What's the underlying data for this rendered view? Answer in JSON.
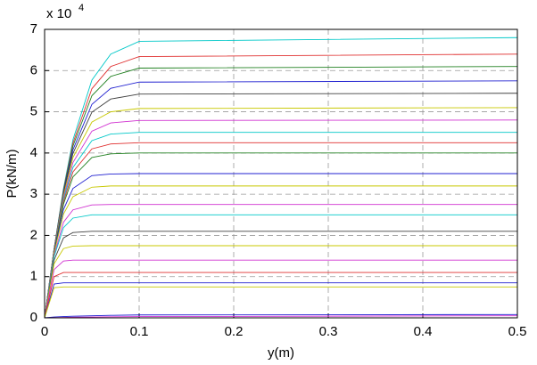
{
  "chart_data": {
    "type": "line",
    "xlabel": "y(m)",
    "ylabel": "P(kN/m)",
    "y_multiplier": "x 10",
    "y_multiplier_exponent": "4",
    "x": [
      0,
      0.01,
      0.02,
      0.03,
      0.05,
      0.07,
      0.1,
      0.5
    ],
    "xlim": [
      0,
      0.5
    ],
    "xticks": [
      0,
      0.1,
      0.2,
      0.3,
      0.4,
      0.5
    ],
    "ylim": [
      0,
      7
    ],
    "yticks": [
      0,
      1,
      2,
      3,
      4,
      5,
      6,
      7
    ],
    "grid": true,
    "series": [
      {
        "color": "#00c8c8",
        "values": [
          0,
          1.67,
          3.14,
          4.32,
          5.77,
          6.4,
          6.71,
          6.8
        ]
      },
      {
        "color": "#e03030",
        "values": [
          0,
          1.66,
          3.11,
          4.24,
          5.56,
          6.1,
          6.34,
          6.4
        ]
      },
      {
        "color": "#208020",
        "values": [
          0,
          1.66,
          3.09,
          4.17,
          5.39,
          5.86,
          6.06,
          6.1
        ]
      },
      {
        "color": "#2020d0",
        "values": [
          0,
          1.66,
          3.05,
          4.08,
          5.18,
          5.57,
          5.72,
          5.75
        ]
      },
      {
        "color": "#404040",
        "values": [
          0,
          1.65,
          3.02,
          3.99,
          4.99,
          5.31,
          5.43,
          5.45
        ]
      },
      {
        "color": "#c8c800",
        "values": [
          0,
          1.64,
          2.97,
          3.89,
          4.75,
          5.0,
          5.08,
          5.1
        ]
      },
      {
        "color": "#d030d0",
        "values": [
          0,
          1.63,
          2.92,
          3.77,
          4.53,
          4.73,
          4.79,
          4.8
        ]
      },
      {
        "color": "#00c8c8",
        "values": [
          0,
          1.62,
          2.88,
          3.65,
          4.3,
          4.46,
          4.5,
          4.5
        ]
      },
      {
        "color": "#e03030",
        "values": [
          0,
          1.62,
          2.82,
          3.54,
          4.1,
          4.22,
          4.25,
          4.25
        ]
      },
      {
        "color": "#208020",
        "values": [
          0,
          1.6,
          2.76,
          3.42,
          3.89,
          3.98,
          4.0,
          4.0
        ]
      },
      {
        "color": "#2020d0",
        "values": [
          0,
          1.58,
          2.63,
          3.14,
          3.45,
          3.49,
          3.5,
          3.5
        ]
      },
      {
        "color": "#c8c800",
        "values": [
          0,
          1.56,
          2.52,
          2.94,
          3.17,
          3.2,
          3.2,
          3.2
        ]
      },
      {
        "color": "#d030d0",
        "values": [
          0,
          1.51,
          2.32,
          2.62,
          2.74,
          2.75,
          2.75,
          2.75
        ]
      },
      {
        "color": "#00c8c8",
        "values": [
          0,
          1.48,
          2.19,
          2.42,
          2.5,
          2.5,
          2.5,
          2.5
        ]
      },
      {
        "color": "#404040",
        "values": [
          0,
          1.4,
          1.94,
          2.07,
          2.1,
          2.1,
          2.1,
          2.1
        ]
      },
      {
        "color": "#c8c800",
        "values": [
          0,
          1.31,
          1.68,
          1.74,
          1.75,
          1.75,
          1.75,
          1.75
        ]
      },
      {
        "color": "#d030d0",
        "values": [
          0,
          1.17,
          1.38,
          1.4,
          1.4,
          1.4,
          1.4,
          1.4
        ]
      },
      {
        "color": "#e03030",
        "values": [
          0,
          1.0,
          1.1,
          1.1,
          1.1,
          1.1,
          1.1,
          1.1
        ]
      },
      {
        "color": "#2020d0",
        "values": [
          0,
          0.82,
          0.85,
          0.85,
          0.85,
          0.85,
          0.85,
          0.85
        ]
      },
      {
        "color": "#c8c800",
        "values": [
          0,
          0.73,
          0.75,
          0.75,
          0.75,
          0.75,
          0.75,
          0.75
        ]
      },
      {
        "color": "#2020d0",
        "values": [
          0,
          0.02,
          0.03,
          0.04,
          0.05,
          0.06,
          0.07,
          0.08
        ]
      },
      {
        "color": "#d030d0",
        "values": [
          0,
          0.005,
          0.01,
          0.015,
          0.02,
          0.025,
          0.03,
          0.05
        ]
      }
    ]
  }
}
